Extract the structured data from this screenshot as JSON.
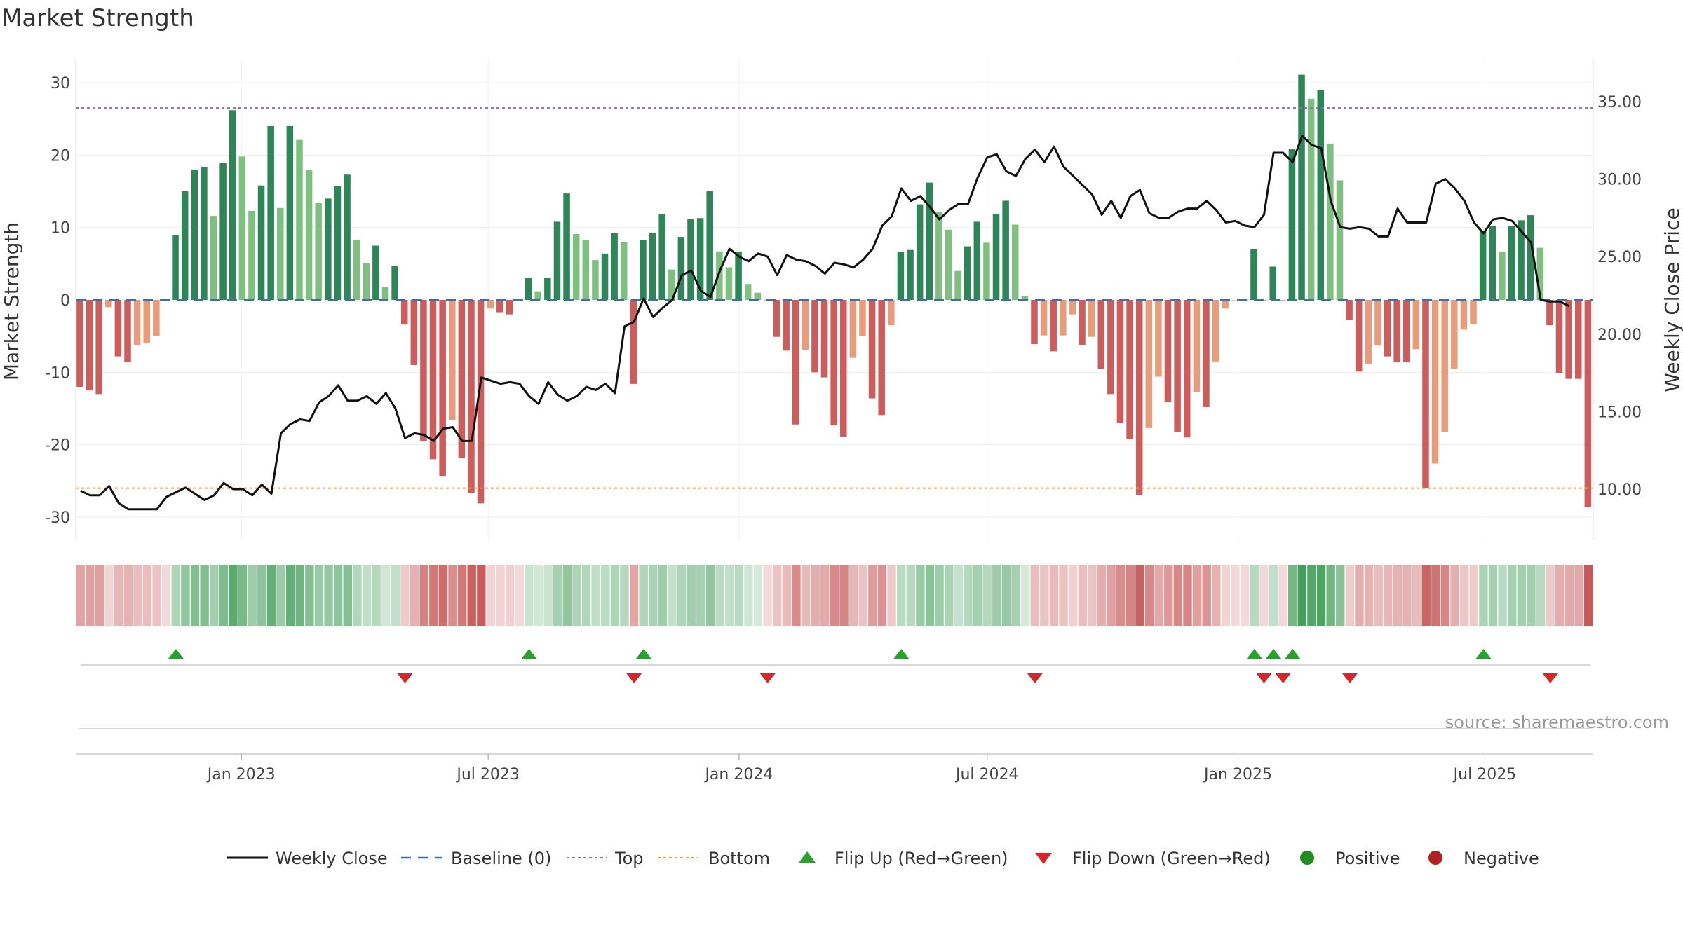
{
  "title": "Market Strength",
  "source": "source: sharemaestro.com",
  "chart_data": {
    "type": "bar",
    "title": "Market Strength",
    "ylabel": "Market Strength",
    "y2label": "Weekly Close Price",
    "ylim": [
      -33,
      33
    ],
    "y2lim": [
      7.6,
      38.0
    ],
    "yticks": [
      -30,
      -20,
      -10,
      0,
      10,
      20,
      30
    ],
    "y2ticks": [
      "10.00",
      "15.00",
      "20.00",
      "25.00",
      "30.00",
      "35.00"
    ],
    "x_start": "2022-09-05",
    "x_interval_days": 7,
    "x_ticks": [
      {
        "date": "2023-01-01",
        "label": "Jan 2023"
      },
      {
        "date": "2023-07-01",
        "label": "Jul 2023"
      },
      {
        "date": "2024-01-01",
        "label": "Jan 2024"
      },
      {
        "date": "2024-07-01",
        "label": "Jul 2024"
      },
      {
        "date": "2025-01-01",
        "label": "Jan 2025"
      },
      {
        "date": "2025-07-01",
        "label": "Jul 2025"
      }
    ],
    "top_level": 26.5,
    "bottom_level": -26.0,
    "strength": [
      -12,
      -12.5,
      -13,
      -1,
      -7.8,
      -8.6,
      -6.2,
      -6,
      -5,
      0,
      8.9,
      15,
      18,
      18.3,
      11.6,
      18.9,
      26.2,
      19.8,
      12.3,
      15.8,
      24,
      12.7,
      24,
      22.1,
      17.9,
      13.4,
      14,
      15.7,
      17.3,
      8.3,
      5.1,
      7.5,
      1.8,
      4.7,
      -3.4,
      -9,
      -19.5,
      -22,
      -24.3,
      -16.6,
      -21.8,
      -26.7,
      -28.1,
      -1.2,
      -1.7,
      -2,
      0,
      3,
      1.2,
      3,
      10.8,
      14.7,
      9.1,
      8.3,
      5.5,
      6.4,
      9.2,
      8,
      -11.6,
      8.3,
      9.3,
      11.8,
      4.2,
      8.7,
      11.2,
      11.3,
      15,
      6.7,
      4.5,
      6.6,
      2.2,
      1,
      0,
      -5.1,
      -7,
      -17.2,
      -6.9,
      -10,
      -10.7,
      -17.3,
      -18.9,
      -8,
      -5,
      -13.6,
      -15.9,
      -3.5,
      6.6,
      6.9,
      13.2,
      16.2,
      12.1,
      9.7,
      4,
      7.4,
      10.8,
      7.9,
      11.9,
      13.7,
      10.4,
      0.5,
      -6.1,
      -4.9,
      -7.1,
      -4.9,
      -2,
      -6.2,
      -5.1,
      -9.5,
      -13,
      -17,
      -19.2,
      -26.9,
      -17.7,
      -10.6,
      -14.1,
      -18.2,
      -19,
      -12.7,
      -14.8,
      -8.5,
      -1.2,
      0,
      0,
      7,
      0,
      4.6,
      0,
      20.8,
      31.1,
      27.8,
      29,
      21.6,
      16.5,
      -2.8,
      -9.9,
      -8.8,
      -6.3,
      -7.8,
      -8.6,
      -8.6,
      -6.8,
      -26,
      -22.6,
      -18.2,
      -9.5,
      -4.1,
      -3.3,
      9.6,
      10.2,
      6.6,
      10.2,
      11,
      11.7,
      7.2,
      -3.5,
      -10.1,
      -10.9,
      -10.9,
      -28.6
    ],
    "close": [
      9.9,
      9.6,
      9.6,
      10.2,
      9.1,
      8.7,
      8.7,
      8.7,
      8.7,
      9.5,
      9.8,
      10.1,
      9.7,
      9.3,
      9.6,
      10.4,
      10.0,
      10.0,
      9.6,
      10.3,
      9.7,
      13.6,
      14.2,
      14.5,
      14.4,
      15.6,
      16.0,
      16.7,
      15.7,
      15.7,
      16.0,
      15.5,
      16.2,
      15.2,
      13.3,
      13.6,
      13.5,
      13.1,
      13.9,
      14.0,
      13.1,
      13.1,
      17.2,
      17.0,
      16.8,
      16.9,
      16.8,
      16.0,
      15.5,
      16.9,
      16.1,
      15.7,
      16.0,
      16.6,
      16.4,
      16.8,
      16.2,
      20.5,
      20.8,
      22.3,
      21.1,
      21.7,
      22.2,
      23.8,
      24.1,
      22.8,
      22.4,
      24.1,
      25.5,
      25.0,
      24.7,
      25.2,
      25.0,
      23.8,
      25.1,
      24.8,
      24.7,
      24.4,
      23.9,
      24.6,
      24.5,
      24.3,
      24.8,
      25.5,
      27.0,
      27.6,
      29.4,
      28.6,
      28.9,
      28.2,
      27.4,
      28.0,
      28.4,
      28.4,
      30.1,
      31.4,
      31.6,
      30.5,
      30.2,
      31.3,
      31.9,
      31.1,
      32.1,
      30.8,
      30.2,
      29.6,
      29.0,
      27.7,
      28.6,
      27.5,
      28.9,
      29.3,
      27.8,
      27.5,
      27.5,
      27.9,
      28.1,
      28.1,
      28.6,
      28.0,
      27.2,
      27.3,
      27.0,
      26.9,
      27.7,
      31.7,
      31.7,
      31.1,
      32.8,
      32.2,
      32.0,
      28.6,
      26.9,
      26.8,
      26.9,
      26.8,
      26.3,
      26.3,
      28.1,
      27.2,
      27.2,
      27.2,
      29.7,
      30.0,
      29.4,
      28.6,
      27.2,
      26.5,
      27.4,
      27.5,
      27.3,
      26.6,
      25.9,
      22.2,
      22.1,
      22.1,
      21.8
    ]
  },
  "legend": {
    "weekly_close": "Weekly Close",
    "baseline": "Baseline (0)",
    "top": "Top",
    "bottom": "Bottom",
    "flip_up": "Flip Up (Red→Green)",
    "flip_down": "Flip Down (Green→Red)",
    "positive": "Positive",
    "negative": "Negative"
  },
  "colors": {
    "pos_strong": "#2e8557",
    "pos_weak": "#7fc080",
    "neg_strong": "#cd5c5c",
    "neg_weak": "#e89c7c",
    "close_line": "#111111",
    "baseline": "#3a6fb0",
    "top_line": "#9467bd",
    "bottom_line": "#f0a040",
    "flip_up": "#2ca02c",
    "flip_down": "#d62728",
    "positive_dot": "#228b22",
    "negative_dot": "#b22222"
  }
}
